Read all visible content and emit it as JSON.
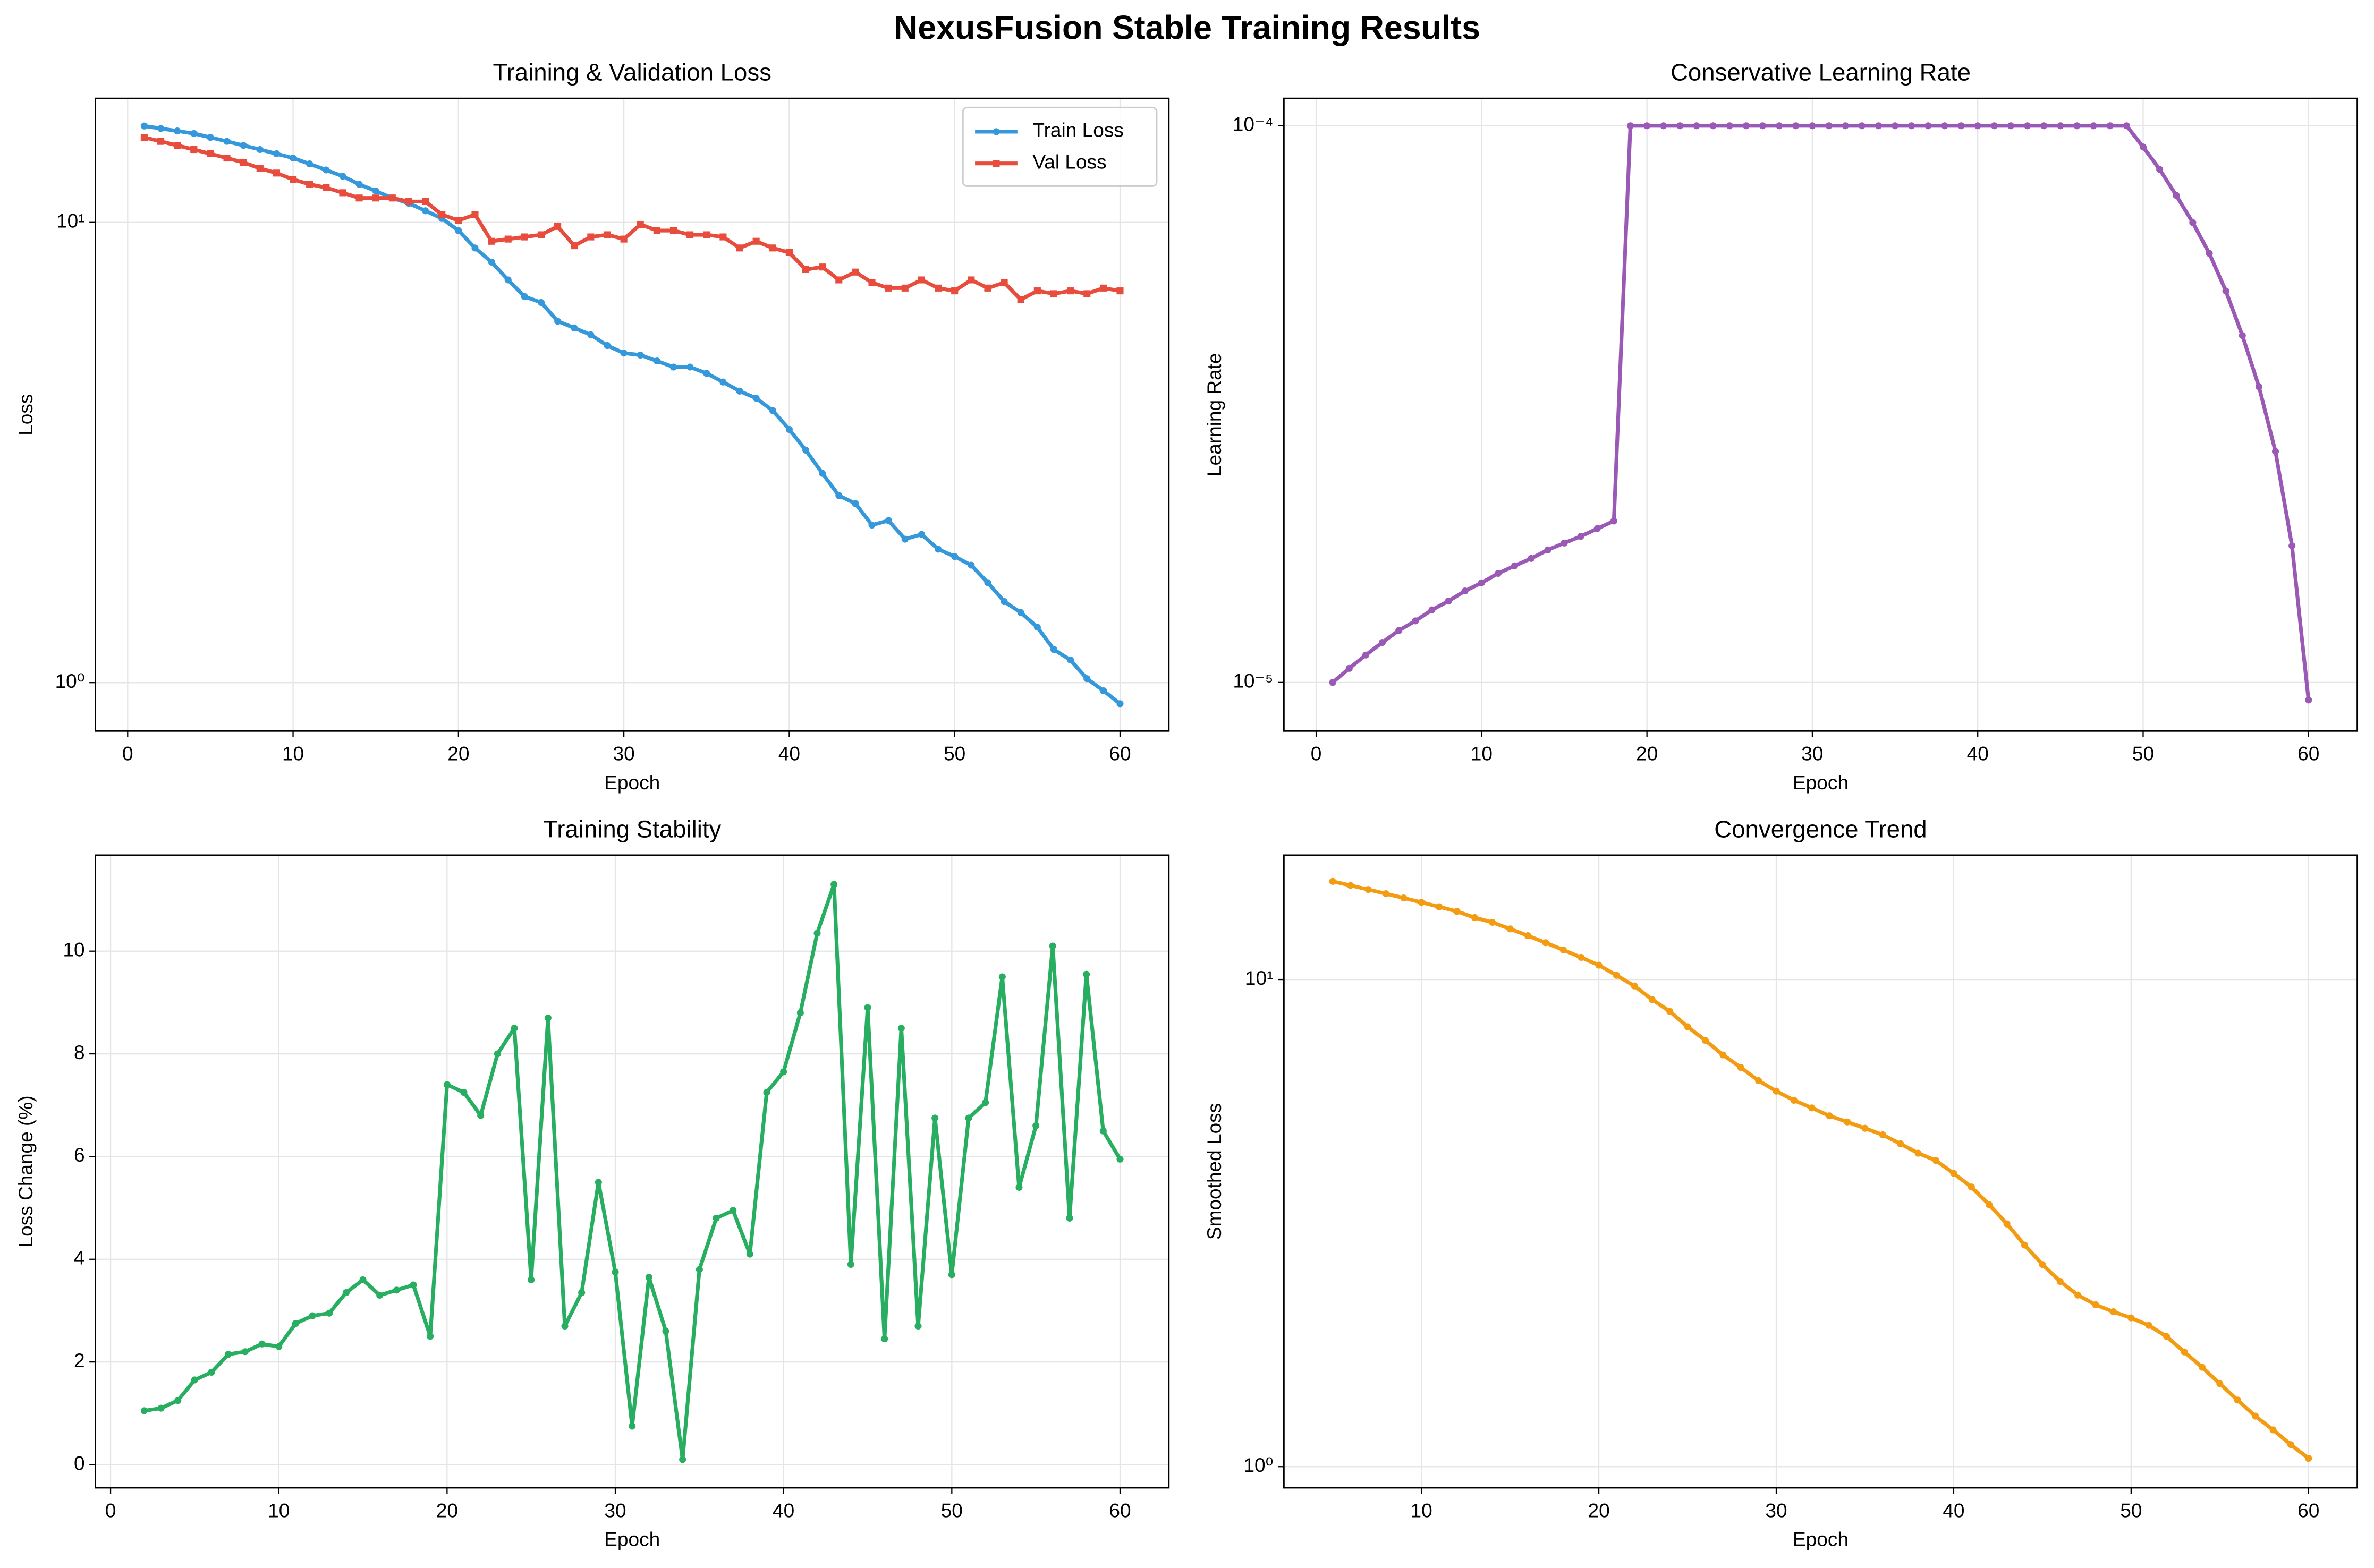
{
  "title": "NexusFusion Stable Training Results",
  "chart_data": [
    {
      "type": "line",
      "title": "Training & Validation Loss",
      "xlabel": "Epoch",
      "ylabel": "Loss",
      "x": [
        1,
        2,
        3,
        4,
        5,
        6,
        7,
        8,
        9,
        10,
        11,
        12,
        13,
        14,
        15,
        16,
        17,
        18,
        19,
        20,
        21,
        22,
        23,
        24,
        25,
        26,
        27,
        28,
        29,
        30,
        31,
        32,
        33,
        34,
        35,
        36,
        37,
        38,
        39,
        40,
        41,
        42,
        43,
        44,
        45,
        46,
        47,
        48,
        49,
        50,
        51,
        52,
        53,
        54,
        55,
        56,
        57,
        58,
        59,
        60
      ],
      "series": [
        {
          "name": "Train Loss",
          "color": "#3498db",
          "marker": "circle",
          "values": [
            16.2,
            16.0,
            15.8,
            15.6,
            15.3,
            15.0,
            14.7,
            14.4,
            14.1,
            13.8,
            13.4,
            13.0,
            12.6,
            12.1,
            11.7,
            11.3,
            11.0,
            10.6,
            10.2,
            9.6,
            8.8,
            8.2,
            7.5,
            6.9,
            6.7,
            6.1,
            5.9,
            5.7,
            5.4,
            5.2,
            5.15,
            5.0,
            4.85,
            4.85,
            4.7,
            4.5,
            4.3,
            4.15,
            3.9,
            3.55,
            3.2,
            2.85,
            2.55,
            2.45,
            2.2,
            2.25,
            2.05,
            2.1,
            1.95,
            1.88,
            1.8,
            1.65,
            1.5,
            1.42,
            1.32,
            1.18,
            1.12,
            1.02,
            0.96,
            0.9
          ]
        },
        {
          "name": "Val Loss",
          "color": "#e74c3c",
          "marker": "square",
          "values": [
            15.3,
            15.0,
            14.7,
            14.4,
            14.1,
            13.8,
            13.5,
            13.1,
            12.8,
            12.4,
            12.1,
            11.9,
            11.6,
            11.3,
            11.3,
            11.3,
            11.1,
            11.1,
            10.4,
            10.1,
            10.4,
            9.1,
            9.2,
            9.3,
            9.4,
            9.8,
            8.9,
            9.3,
            9.4,
            9.2,
            9.9,
            9.6,
            9.6,
            9.4,
            9.4,
            9.3,
            8.8,
            9.1,
            8.8,
            8.6,
            7.9,
            8.0,
            7.5,
            7.8,
            7.4,
            7.2,
            7.2,
            7.5,
            7.2,
            7.1,
            7.5,
            7.2,
            7.4,
            6.8,
            7.1,
            7.0,
            7.1,
            7.0,
            7.2,
            7.1
          ]
        }
      ],
      "xlim": [
        -1.95,
        62.95
      ],
      "xticks": [
        0,
        10,
        20,
        30,
        40,
        50,
        60
      ],
      "ylim": [
        0.785,
        18.6
      ],
      "yscale": "log",
      "yticks": [
        {
          "value": 1,
          "label": "10⁰"
        },
        {
          "value": 10,
          "label": "10¹"
        }
      ],
      "grid": true,
      "legend": "upper right"
    },
    {
      "type": "line",
      "title": "Conservative Learning Rate",
      "xlabel": "Epoch",
      "ylabel": "Learning Rate",
      "x": [
        1,
        2,
        3,
        4,
        5,
        6,
        7,
        8,
        9,
        10,
        11,
        12,
        13,
        14,
        15,
        16,
        17,
        18,
        19,
        20,
        21,
        22,
        23,
        24,
        25,
        26,
        27,
        28,
        29,
        30,
        31,
        32,
        33,
        34,
        35,
        36,
        37,
        38,
        39,
        40,
        41,
        42,
        43,
        44,
        45,
        46,
        47,
        48,
        49,
        50,
        51,
        52,
        53,
        54,
        55,
        56,
        57,
        58,
        59,
        60
      ],
      "series": [
        {
          "color": "#9b59b6",
          "marker": "circle",
          "values": [
            1e-05,
            1.06e-05,
            1.12e-05,
            1.18e-05,
            1.24e-05,
            1.29e-05,
            1.35e-05,
            1.4e-05,
            1.46e-05,
            1.51e-05,
            1.57e-05,
            1.62e-05,
            1.67e-05,
            1.73e-05,
            1.78e-05,
            1.83e-05,
            1.89e-05,
            1.95e-05,
            0.0001,
            0.0001,
            0.0001,
            0.0001,
            0.0001,
            0.0001,
            0.0001,
            0.0001,
            0.0001,
            0.0001,
            0.0001,
            0.0001,
            0.0001,
            0.0001,
            0.0001,
            0.0001,
            0.0001,
            0.0001,
            0.0001,
            0.0001,
            0.0001,
            0.0001,
            0.0001,
            0.0001,
            0.0001,
            0.0001,
            0.0001,
            0.0001,
            0.0001,
            0.0001,
            0.0001,
            9.16e-05,
            8.35e-05,
            7.5e-05,
            6.7e-05,
            5.9e-05,
            5.05e-05,
            4.2e-05,
            3.4e-05,
            2.6e-05,
            1.76e-05,
            9.3e-06
          ]
        }
      ],
      "xlim": [
        -1.95,
        62.95
      ],
      "xticks": [
        0,
        10,
        20,
        30,
        40,
        50,
        60
      ],
      "ylim": [
        8.18e-06,
        0.000112
      ],
      "yscale": "log",
      "yticks": [
        {
          "value": 1e-05,
          "label": "10⁻⁵"
        },
        {
          "value": 0.0001,
          "label": "10⁻⁴"
        }
      ],
      "grid": true
    },
    {
      "type": "line",
      "title": "Training Stability",
      "xlabel": "Epoch",
      "ylabel": "Loss Change (%)",
      "x": [
        2,
        3,
        4,
        5,
        6,
        7,
        8,
        9,
        10,
        11,
        12,
        13,
        14,
        15,
        16,
        17,
        18,
        19,
        20,
        21,
        22,
        23,
        24,
        25,
        26,
        27,
        28,
        29,
        30,
        31,
        32,
        33,
        34,
        35,
        36,
        37,
        38,
        39,
        40,
        41,
        42,
        43,
        44,
        45,
        46,
        47,
        48,
        49,
        50,
        51,
        52,
        53,
        54,
        55,
        56,
        57,
        58,
        59,
        60
      ],
      "series": [
        {
          "color": "#27ae60",
          "marker": "circle",
          "values": [
            1.05,
            1.1,
            1.25,
            1.65,
            1.8,
            2.15,
            2.2,
            2.35,
            2.3,
            2.75,
            2.9,
            2.95,
            3.35,
            3.6,
            3.3,
            3.4,
            3.5,
            2.5,
            7.4,
            7.25,
            6.8,
            8.0,
            8.5,
            3.6,
            8.7,
            2.7,
            3.35,
            5.5,
            3.75,
            0.75,
            3.65,
            2.6,
            0.1,
            3.8,
            4.8,
            4.95,
            4.1,
            7.25,
            7.65,
            8.8,
            10.35,
            11.3,
            3.9,
            8.9,
            2.45,
            8.5,
            2.7,
            6.75,
            3.7,
            6.75,
            7.05,
            9.5,
            5.4,
            6.6,
            10.1,
            4.8,
            9.55,
            6.5,
            5.95
          ]
        }
      ],
      "xlim": [
        -0.9,
        62.9
      ],
      "xticks": [
        0,
        10,
        20,
        30,
        40,
        50,
        60
      ],
      "ylim": [
        -0.45,
        11.87
      ],
      "yscale": "linear",
      "yticks": [
        0,
        2,
        4,
        6,
        8,
        10
      ],
      "grid": true
    },
    {
      "type": "line",
      "title": "Convergence Trend",
      "xlabel": "Epoch",
      "ylabel": "Smoothed Loss",
      "x": [
        5,
        6,
        7,
        8,
        9,
        10,
        11,
        12,
        13,
        14,
        15,
        16,
        17,
        18,
        19,
        20,
        21,
        22,
        23,
        24,
        25,
        26,
        27,
        28,
        29,
        30,
        31,
        32,
        33,
        34,
        35,
        36,
        37,
        38,
        39,
        40,
        41,
        42,
        43,
        44,
        45,
        46,
        47,
        48,
        49,
        50,
        51,
        52,
        53,
        54,
        55,
        56,
        57,
        58,
        59,
        60
      ],
      "series": [
        {
          "color": "#f39c12",
          "marker": "circle",
          "values": [
            15.9,
            15.6,
            15.3,
            15.0,
            14.7,
            14.4,
            14.1,
            13.8,
            13.4,
            13.1,
            12.7,
            12.3,
            11.9,
            11.5,
            11.1,
            10.7,
            10.2,
            9.7,
            9.1,
            8.6,
            8.0,
            7.5,
            7.0,
            6.6,
            6.2,
            5.9,
            5.65,
            5.45,
            5.25,
            5.1,
            4.95,
            4.8,
            4.6,
            4.4,
            4.25,
            4.0,
            3.75,
            3.45,
            3.15,
            2.85,
            2.6,
            2.4,
            2.25,
            2.15,
            2.08,
            2.02,
            1.95,
            1.85,
            1.72,
            1.6,
            1.48,
            1.37,
            1.27,
            1.19,
            1.11,
            1.04
          ]
        }
      ],
      "xlim": [
        2.25,
        62.75
      ],
      "xticks": [
        10,
        20,
        30,
        40,
        50,
        60
      ],
      "ylim": [
        0.905,
        18.0
      ],
      "yscale": "log",
      "yticks": [
        {
          "value": 1,
          "label": "10⁰"
        },
        {
          "value": 10,
          "label": "10¹"
        }
      ],
      "grid": true
    }
  ]
}
